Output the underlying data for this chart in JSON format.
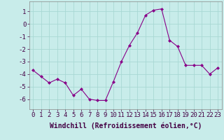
{
  "x": [
    0,
    1,
    2,
    3,
    4,
    5,
    6,
    7,
    8,
    9,
    10,
    11,
    12,
    13,
    14,
    15,
    16,
    17,
    18,
    19,
    20,
    21,
    22,
    23
  ],
  "y": [
    -3.7,
    -4.2,
    -4.7,
    -4.4,
    -4.7,
    -5.7,
    -5.2,
    -6.0,
    -6.1,
    -6.1,
    -4.6,
    -3.0,
    -1.7,
    -0.7,
    0.7,
    1.1,
    1.2,
    -1.3,
    -1.8,
    -3.3,
    -3.3,
    -3.3,
    -4.0,
    -3.5
  ],
  "line_color": "#880088",
  "marker": "D",
  "marker_size": 2,
  "bg_color": "#c8ecea",
  "grid_color": "#a8d8d4",
  "xlabel": "Windchill (Refroidissement éolien,°C)",
  "xlabel_fontsize": 7,
  "ylabel_ticks": [
    1,
    0,
    -1,
    -2,
    -3,
    -4,
    -5,
    -6
  ],
  "xlim": [
    -0.5,
    23.5
  ],
  "ylim": [
    -6.8,
    1.8
  ],
  "tick_fontsize": 6.5,
  "line_color_hex": "#880088"
}
